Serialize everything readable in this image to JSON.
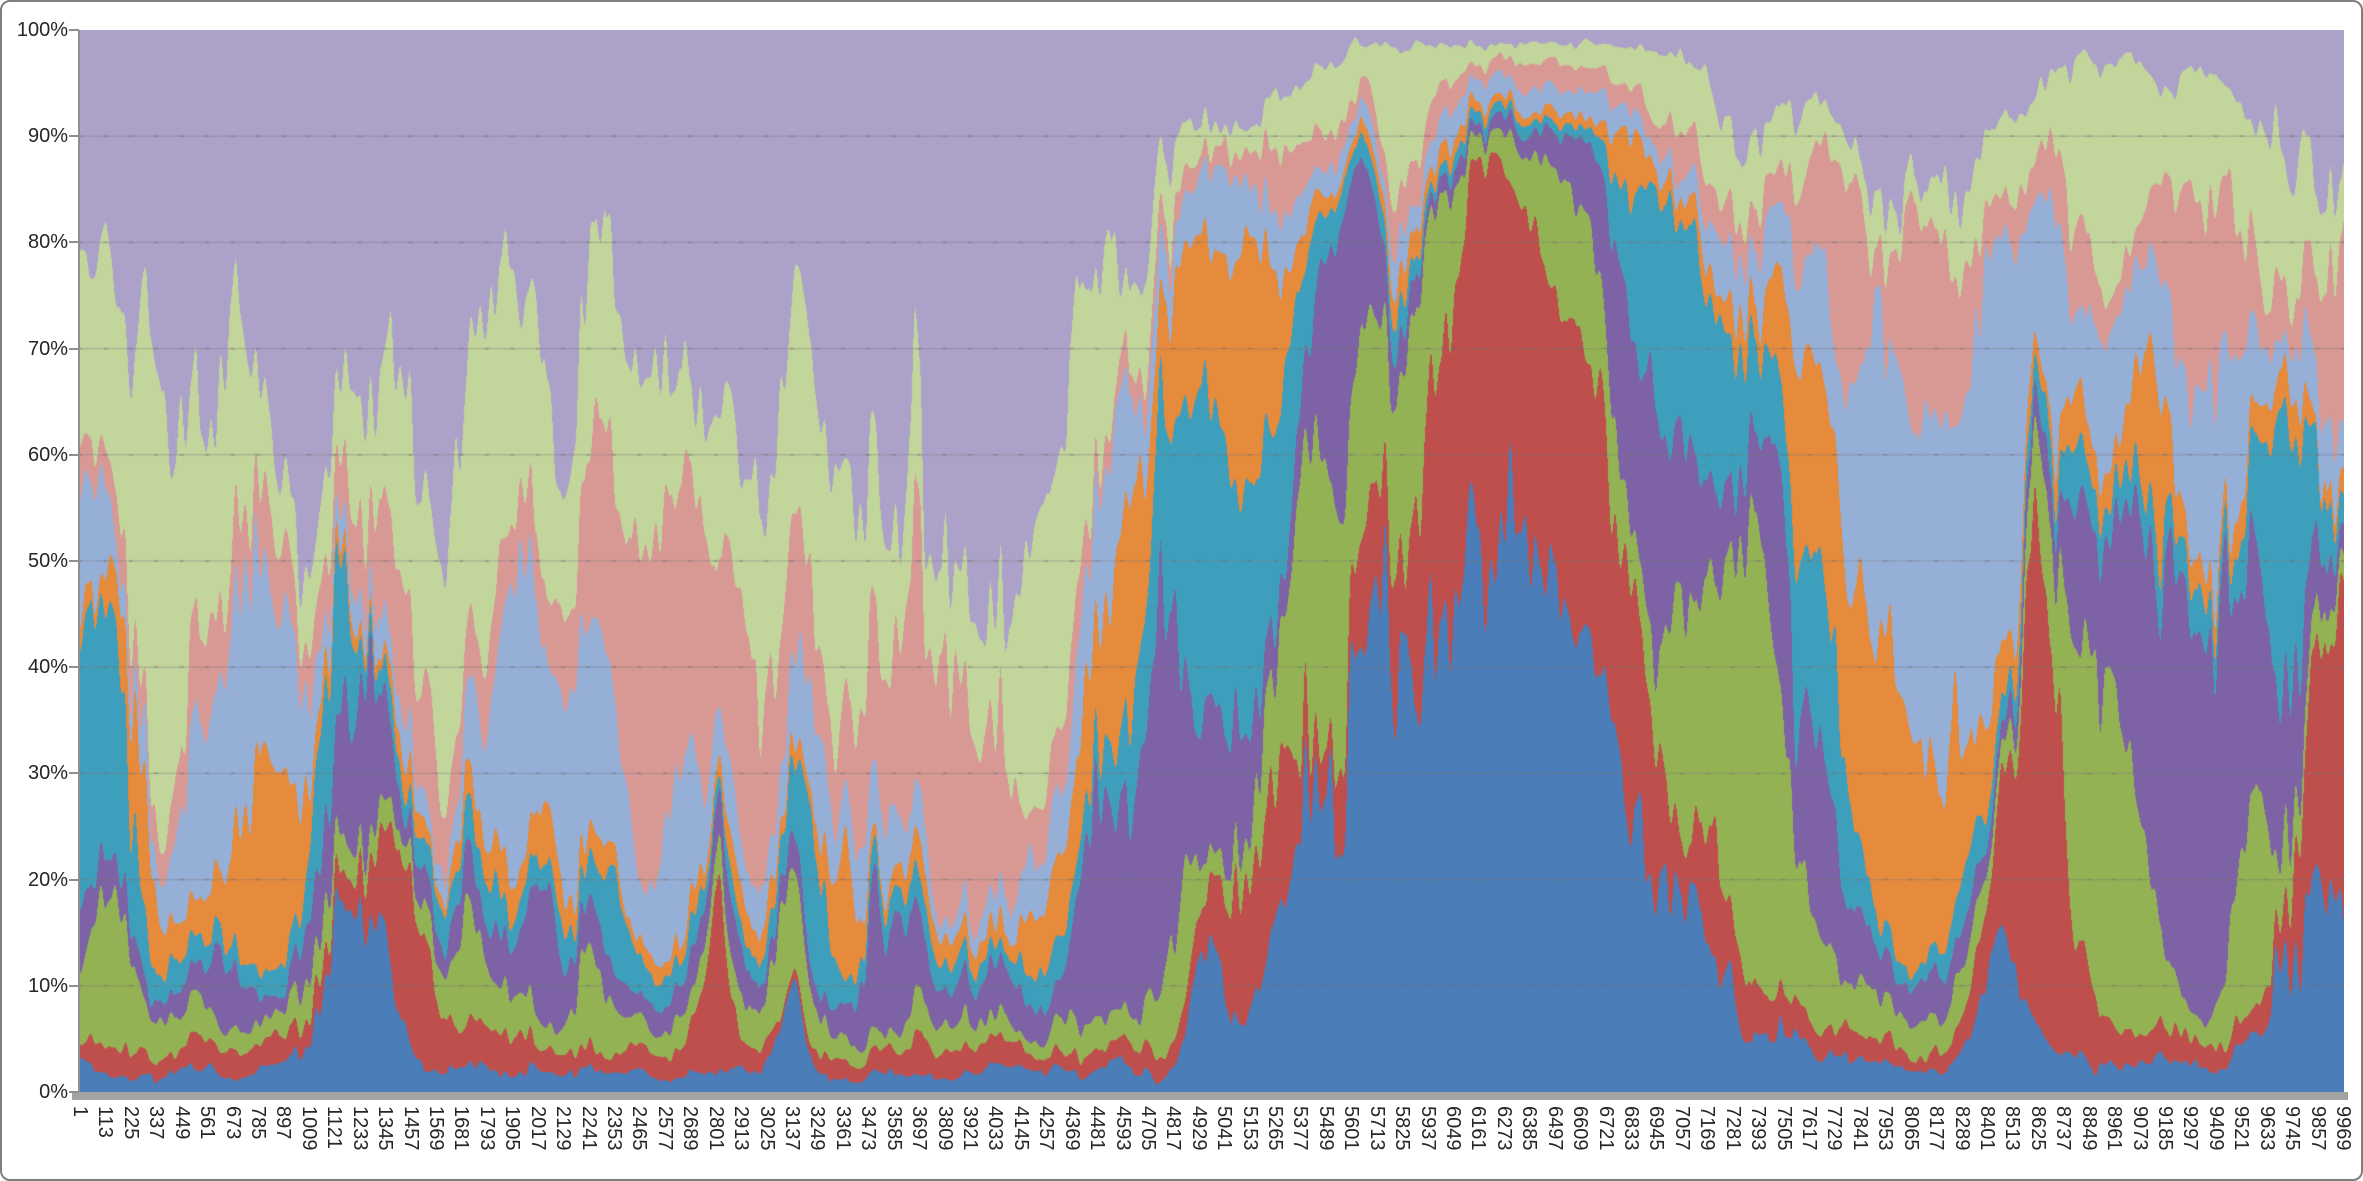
{
  "frame": {
    "background": "#ffffff",
    "border_color": "#7f7f7f"
  },
  "axes": {
    "y_axis_color": "#8f8f8f",
    "x_axis_bar_color": "#a3a3a3",
    "label_color": "#262626",
    "gridline_color": "rgba(123,123,123,0.40)"
  },
  "chart_data": {
    "type": "area",
    "stacking": "percent",
    "title": "",
    "xlabel": "",
    "ylabel": "",
    "legend": "none",
    "grid": "horizontal-major-10pct",
    "ylim": [
      0,
      100
    ],
    "y_tick_labels": [
      "100%",
      "90%",
      "80%",
      "70%",
      "60%",
      "50%",
      "40%",
      "30%",
      "20%",
      "10%",
      "0%"
    ],
    "x_range": [
      1,
      9969
    ],
    "x_label_step": 112,
    "x_labels_rotated_degrees": 90,
    "x_tick_labels": [
      "1",
      "113",
      "225",
      "337",
      "449",
      "561",
      "673",
      "785",
      "897",
      "1009",
      "1121",
      "1233",
      "1345",
      "1457",
      "1569",
      "1681",
      "1793",
      "1905",
      "2017",
      "2129",
      "2241",
      "2353",
      "2465",
      "2577",
      "2689",
      "2801",
      "2913",
      "3025",
      "3137",
      "3249",
      "3361",
      "3473",
      "3585",
      "3697",
      "3809",
      "3921",
      "4033",
      "4145",
      "4257",
      "4369",
      "4481",
      "4593",
      "4705",
      "4817",
      "4929",
      "5041",
      "5153",
      "5265",
      "5377",
      "5489",
      "5601",
      "5713",
      "5825",
      "5937",
      "6049",
      "6161",
      "6273",
      "6385",
      "6497",
      "6609",
      "6721",
      "6833",
      "6945",
      "7057",
      "7169",
      "7281",
      "7393",
      "7505",
      "7617",
      "7729",
      "7841",
      "7953",
      "8065",
      "8177",
      "8289",
      "8401",
      "8513",
      "8625",
      "8737",
      "8849",
      "8961",
      "9073",
      "9185",
      "9297",
      "9409",
      "9521",
      "9633",
      "9745",
      "9857",
      "9969"
    ],
    "values_estimated": true,
    "series_model_note": "Underlying per-point values are unlabeled high-frequency data; each series is described by relative weight = base + gaussian bumps [center_x, sigma_x, amplitude] modulated by noise, normalized to 100% per x.",
    "series": [
      {
        "name": "blue",
        "color": "#4b7db8",
        "base": 0.22,
        "bumps": [
          [
            6300,
            480,
            10.0
          ],
          [
            5700,
            200,
            2.5
          ],
          [
            1230,
            110,
            2.2
          ],
          [
            9900,
            160,
            3.2
          ],
          [
            4980,
            70,
            1.2
          ],
          [
            3140,
            50,
            0.8
          ],
          [
            8450,
            80,
            1.0
          ]
        ]
      },
      {
        "name": "dark-red",
        "color": "#be4f4c",
        "base": 0.28,
        "bumps": [
          [
            6250,
            300,
            6.5
          ],
          [
            6750,
            180,
            2.5
          ],
          [
            1420,
            80,
            2.4
          ],
          [
            5180,
            120,
            2.2
          ],
          [
            8650,
            140,
            2.6
          ],
          [
            9960,
            120,
            2.2
          ],
          [
            5600,
            80,
            1.2
          ],
          [
            2790,
            50,
            1.0
          ],
          [
            7180,
            80,
            1.2
          ]
        ]
      },
      {
        "name": "olive-green",
        "color": "#93b254",
        "base": 0.32,
        "bumps": [
          [
            5480,
            160,
            3.2
          ],
          [
            5880,
            130,
            2.6
          ],
          [
            6580,
            160,
            3.0
          ],
          [
            7260,
            220,
            4.2
          ],
          [
            8950,
            130,
            2.6
          ],
          [
            140,
            70,
            1.4
          ],
          [
            3120,
            90,
            1.4
          ],
          [
            9580,
            90,
            1.6
          ],
          [
            4840,
            70,
            1.4
          ],
          [
            1660,
            70,
            1.1
          ],
          [
            2250,
            60,
            0.9
          ]
        ]
      },
      {
        "name": "purple",
        "color": "#7d63a5",
        "base": 0.38,
        "bumps": [
          [
            4830,
            160,
            4.2
          ],
          [
            1245,
            65,
            3.0
          ],
          [
            5560,
            110,
            2.4
          ],
          [
            6900,
            190,
            3.6
          ],
          [
            7560,
            130,
            2.4
          ],
          [
            9280,
            220,
            4.2
          ],
          [
            3520,
            90,
            1.6
          ],
          [
            4470,
            60,
            1.4
          ],
          [
            2050,
            50,
            0.8
          ],
          [
            620,
            40,
            0.7
          ]
        ]
      },
      {
        "name": "teal",
        "color": "#3e9fbc",
        "base": 0.28,
        "bumps": [
          [
            110,
            110,
            2.6
          ],
          [
            4960,
            210,
            3.0
          ],
          [
            1130,
            70,
            1.4
          ],
          [
            7060,
            160,
            2.4
          ],
          [
            7620,
            120,
            2.0
          ],
          [
            9700,
            110,
            2.0
          ],
          [
            3240,
            80,
            1.4
          ],
          [
            5320,
            90,
            1.8
          ],
          [
            6840,
            70,
            1.3
          ],
          [
            2350,
            50,
            0.7
          ]
        ]
      },
      {
        "name": "orange",
        "color": "#e68a3c",
        "base": 0.28,
        "bumps": [
          [
            820,
            100,
            2.6
          ],
          [
            4620,
            210,
            3.0
          ],
          [
            5150,
            110,
            2.0
          ],
          [
            7900,
            260,
            3.4
          ],
          [
            240,
            60,
            1.1
          ],
          [
            3360,
            60,
            1.2
          ],
          [
            6800,
            60,
            1.1
          ],
          [
            9100,
            70,
            1.0
          ],
          [
            2060,
            40,
            0.7
          ]
        ]
      },
      {
        "name": "light-blue",
        "color": "#95afd7",
        "base": 0.45,
        "bumps": [
          [
            700,
            160,
            1.9
          ],
          [
            2150,
            220,
            1.9
          ],
          [
            3320,
            130,
            1.3
          ],
          [
            4520,
            110,
            1.2
          ],
          [
            8250,
            350,
            3.6
          ],
          [
            2620,
            130,
            1.0
          ],
          [
            9430,
            110,
            1.3
          ],
          [
            1850,
            110,
            1.0
          ],
          [
            60,
            60,
            0.8
          ],
          [
            5050,
            80,
            0.5
          ]
        ]
      },
      {
        "name": "salmon",
        "color": "#d89995",
        "base": 0.45,
        "bumps": [
          [
            1450,
            130,
            1.6
          ],
          [
            2680,
            260,
            2.4
          ],
          [
            3720,
            260,
            3.0
          ],
          [
            2400,
            110,
            1.4
          ],
          [
            8050,
            160,
            1.4
          ],
          [
            9380,
            130,
            1.8
          ],
          [
            620,
            110,
            1.0
          ],
          [
            3060,
            110,
            1.4
          ],
          [
            7790,
            110,
            1.1
          ],
          [
            9950,
            90,
            1.0
          ]
        ]
      },
      {
        "name": "light-green",
        "color": "#c2d59b",
        "base": 0.55,
        "bumps": [
          [
            420,
            220,
            2.6
          ],
          [
            1900,
            320,
            2.8
          ],
          [
            3200,
            260,
            2.8
          ],
          [
            4350,
            220,
            2.8
          ],
          [
            2520,
            160,
            1.5
          ],
          [
            9600,
            160,
            1.5
          ],
          [
            8950,
            110,
            1.2
          ],
          [
            1280,
            110,
            1.0
          ],
          [
            5800,
            160,
            0.9
          ],
          [
            7050,
            120,
            0.8
          ],
          [
            620,
            80,
            1.0
          ]
        ]
      },
      {
        "name": "lavender",
        "color": "#aca1c9",
        "base": 0.35,
        "bumps": [
          [
            2000,
            1100,
            3.4
          ],
          [
            3950,
            400,
            5.0
          ],
          [
            650,
            350,
            2.2
          ],
          [
            3300,
            250,
            2.0
          ],
          [
            9900,
            180,
            2.0
          ],
          [
            8100,
            230,
            1.6
          ],
          [
            4620,
            170,
            1.5
          ],
          [
            1260,
            170,
            1.1
          ],
          [
            7350,
            160,
            0.7
          ],
          [
            5050,
            130,
            0.5
          ]
        ]
      }
    ],
    "render": {
      "seed": 11,
      "noise_amp": 0.9,
      "noise_octaves": [
        [
          40,
          1.0
        ],
        [
          13,
          0.6
        ],
        [
          5,
          0.45
        ]
      ]
    }
  }
}
